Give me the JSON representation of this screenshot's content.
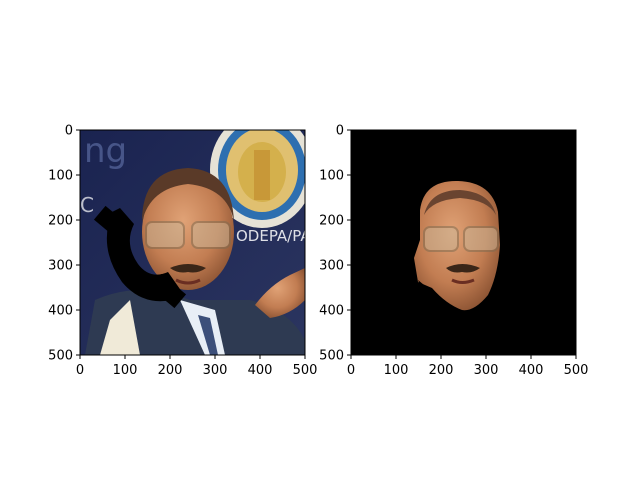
{
  "chart_data": [
    {
      "type": "image",
      "title": "",
      "xlabel": "",
      "ylabel": "",
      "xlim": [
        0,
        500
      ],
      "ylim": [
        500,
        0
      ],
      "xticks": [
        0,
        100,
        200,
        300,
        400,
        500
      ],
      "yticks": [
        0,
        100,
        200,
        300,
        400,
        500
      ],
      "content": "photograph of a man speaking at a lectern with a black telephone-handset shaped occlusion over the left part of the face"
    },
    {
      "type": "image",
      "title": "",
      "xlabel": "",
      "ylabel": "",
      "xlim": [
        0,
        500
      ],
      "ylim": [
        500,
        0
      ],
      "xticks": [
        0,
        100,
        200,
        300,
        400,
        500
      ],
      "yticks": [
        0,
        100,
        200,
        300,
        400,
        500
      ],
      "content": "same photograph masked to show only the face region on a black background"
    }
  ],
  "colors": {
    "background": "#ffffff",
    "mask": "#000000",
    "skin": "#c8845a",
    "suit": "#3a4a66",
    "backdrop": "#1c2545"
  }
}
